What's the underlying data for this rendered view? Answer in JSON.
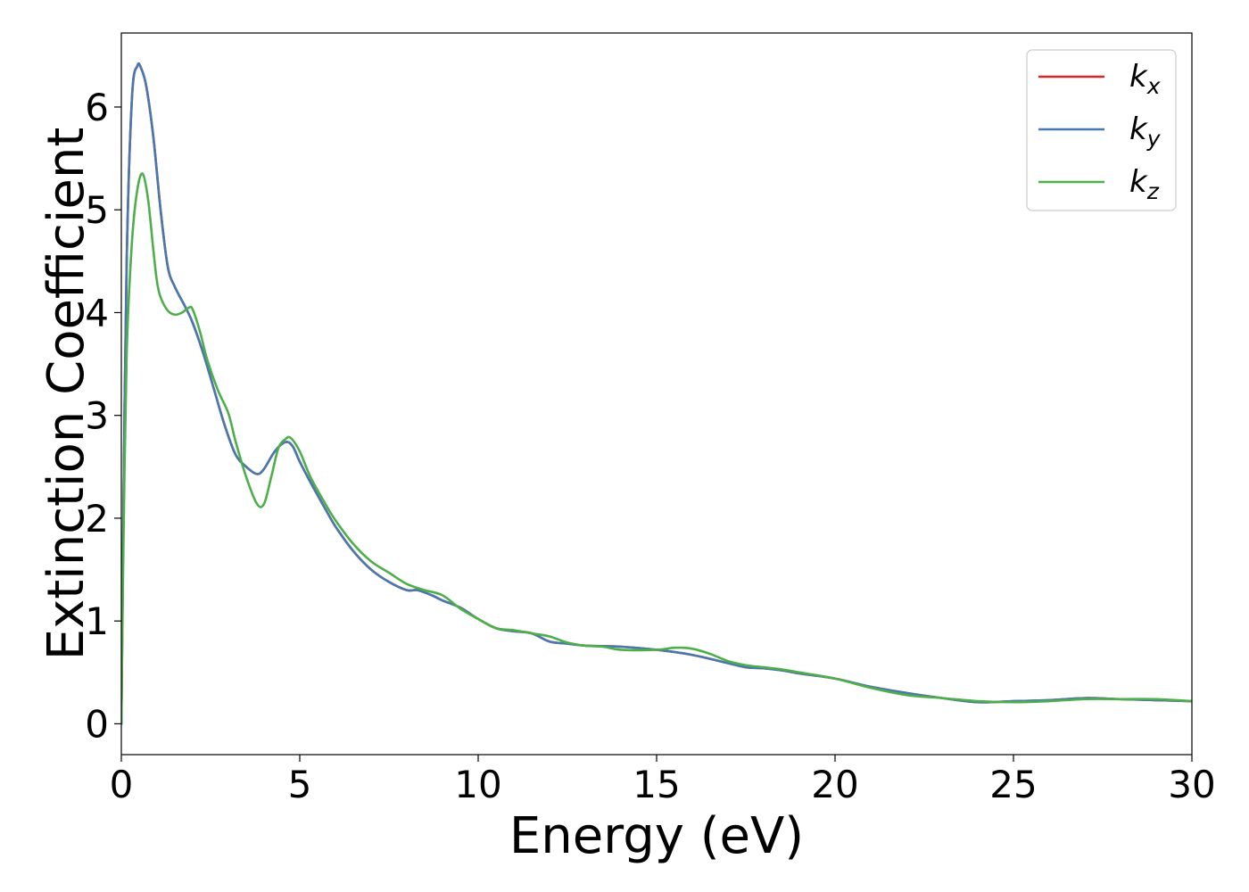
{
  "chart_data": {
    "type": "line",
    "title": "",
    "xlabel": "Energy (eV)",
    "ylabel": "Extinction Coefficient",
    "xlim": [
      0,
      30
    ],
    "ylim": [
      -0.3,
      6.72
    ],
    "xticks": [
      0,
      5,
      10,
      15,
      20,
      25,
      30
    ],
    "yticks": [
      0,
      1,
      2,
      3,
      4,
      5,
      6
    ],
    "grid": false,
    "legend_position": "top-right",
    "series": [
      {
        "name": "kx",
        "label_base": "k",
        "label_sub": "x",
        "color": "#d62728",
        "x": [
          0,
          0.05,
          0.15,
          0.3,
          0.45,
          0.55,
          0.7,
          0.9,
          1.1,
          1.3,
          1.5,
          1.8,
          2.0,
          2.3,
          2.6,
          2.9,
          3.2,
          3.5,
          3.8,
          4.0,
          4.3,
          4.6,
          4.8,
          5.0,
          5.3,
          5.7,
          6.0,
          6.5,
          7.0,
          7.5,
          8.0,
          8.3,
          8.7,
          9.0,
          9.5,
          10.0,
          10.5,
          11.0,
          11.5,
          12.0,
          12.5,
          13.0,
          14.0,
          15.0,
          16.0,
          17.0,
          17.5,
          18.0,
          18.5,
          19.0,
          20.0,
          21.0,
          22.0,
          23.0,
          24.0,
          25.0,
          26.0,
          27.0,
          28.0,
          29.0,
          30.0
        ],
        "y": [
          0.0,
          1.8,
          4.5,
          6.1,
          6.4,
          6.38,
          6.2,
          5.7,
          5.0,
          4.45,
          4.25,
          4.05,
          3.9,
          3.6,
          3.25,
          2.9,
          2.62,
          2.5,
          2.43,
          2.48,
          2.65,
          2.74,
          2.7,
          2.55,
          2.35,
          2.1,
          1.92,
          1.68,
          1.5,
          1.38,
          1.3,
          1.3,
          1.25,
          1.2,
          1.13,
          1.02,
          0.93,
          0.9,
          0.88,
          0.8,
          0.78,
          0.76,
          0.75,
          0.72,
          0.67,
          0.59,
          0.55,
          0.54,
          0.52,
          0.49,
          0.44,
          0.36,
          0.3,
          0.25,
          0.21,
          0.22,
          0.23,
          0.25,
          0.24,
          0.23,
          0.22
        ]
      },
      {
        "name": "ky",
        "label_base": "k",
        "label_sub": "y",
        "color": "#4878b0",
        "x": [
          0,
          0.05,
          0.15,
          0.3,
          0.45,
          0.55,
          0.7,
          0.9,
          1.1,
          1.3,
          1.5,
          1.8,
          2.0,
          2.3,
          2.6,
          2.9,
          3.2,
          3.5,
          3.8,
          4.0,
          4.3,
          4.6,
          4.8,
          5.0,
          5.3,
          5.7,
          6.0,
          6.5,
          7.0,
          7.5,
          8.0,
          8.3,
          8.7,
          9.0,
          9.5,
          10.0,
          10.5,
          11.0,
          11.5,
          12.0,
          12.5,
          13.0,
          14.0,
          15.0,
          16.0,
          17.0,
          17.5,
          18.0,
          18.5,
          19.0,
          20.0,
          21.0,
          22.0,
          23.0,
          24.0,
          25.0,
          26.0,
          27.0,
          28.0,
          29.0,
          30.0
        ],
        "y": [
          0.0,
          1.8,
          4.5,
          6.1,
          6.4,
          6.38,
          6.2,
          5.7,
          5.0,
          4.45,
          4.25,
          4.05,
          3.9,
          3.6,
          3.25,
          2.9,
          2.62,
          2.5,
          2.43,
          2.48,
          2.65,
          2.74,
          2.7,
          2.55,
          2.35,
          2.1,
          1.92,
          1.68,
          1.5,
          1.38,
          1.3,
          1.3,
          1.25,
          1.2,
          1.13,
          1.02,
          0.93,
          0.9,
          0.88,
          0.8,
          0.78,
          0.76,
          0.75,
          0.72,
          0.67,
          0.59,
          0.55,
          0.54,
          0.52,
          0.49,
          0.44,
          0.36,
          0.3,
          0.25,
          0.21,
          0.22,
          0.23,
          0.25,
          0.24,
          0.23,
          0.22
        ]
      },
      {
        "name": "kz",
        "label_base": "k",
        "label_sub": "z",
        "color": "#4daf4a",
        "x": [
          0,
          0.05,
          0.15,
          0.3,
          0.45,
          0.6,
          0.75,
          0.9,
          1.0,
          1.1,
          1.3,
          1.5,
          1.7,
          1.9,
          2.0,
          2.2,
          2.4,
          2.7,
          3.0,
          3.2,
          3.5,
          3.8,
          4.0,
          4.2,
          4.4,
          4.6,
          4.75,
          5.0,
          5.3,
          5.7,
          6.0,
          6.5,
          7.0,
          7.5,
          8.0,
          8.5,
          9.0,
          9.5,
          10.0,
          10.5,
          11.0,
          11.5,
          12.0,
          12.5,
          13.0,
          13.5,
          14.0,
          15.0,
          15.5,
          16.0,
          16.5,
          17.0,
          17.5,
          18.0,
          18.5,
          19.0,
          20.0,
          21.0,
          22.0,
          23.0,
          24.0,
          25.0,
          26.0,
          27.0,
          28.0,
          29.0,
          30.0
        ],
        "y": [
          0.0,
          1.5,
          3.6,
          4.7,
          5.2,
          5.35,
          5.1,
          4.6,
          4.3,
          4.15,
          4.02,
          3.98,
          4.0,
          4.05,
          4.03,
          3.82,
          3.55,
          3.25,
          3.02,
          2.75,
          2.4,
          2.14,
          2.14,
          2.4,
          2.68,
          2.77,
          2.78,
          2.65,
          2.4,
          2.15,
          1.98,
          1.75,
          1.58,
          1.47,
          1.36,
          1.3,
          1.25,
          1.12,
          1.02,
          0.93,
          0.91,
          0.88,
          0.85,
          0.79,
          0.76,
          0.75,
          0.72,
          0.72,
          0.74,
          0.73,
          0.68,
          0.61,
          0.57,
          0.55,
          0.53,
          0.5,
          0.44,
          0.35,
          0.28,
          0.25,
          0.22,
          0.21,
          0.22,
          0.24,
          0.24,
          0.24,
          0.22
        ]
      }
    ]
  }
}
